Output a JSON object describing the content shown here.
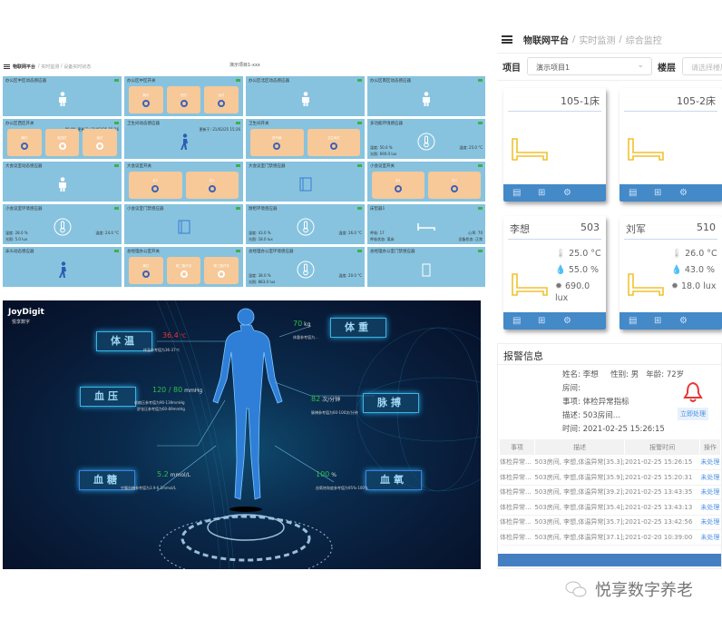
{
  "dashboard": {
    "breadcrumb": [
      "物联网平台",
      "实时监测",
      "设备实时状态"
    ],
    "project": "演示项目1-xxx",
    "cells": [
      {
        "title": "办公区中区动态感应器",
        "type": "person"
      },
      {
        "title": "办公区中区开关",
        "type": "switch",
        "switches": [
          {
            "label": "筒灯",
            "on": true
          },
          {
            "label": "顶灯",
            "on": true
          },
          {
            "label": "台灯",
            "on": true
          }
        ]
      },
      {
        "title": "办公区北区动态感应器",
        "type": "person"
      },
      {
        "title": "办公区南区动态感应器",
        "type": "person"
      },
      {
        "title": "办公区西区开关",
        "type": "switch",
        "meta": "80.0%  更新于: 21/02/25 15:26",
        "switches": [
          {
            "label": "筒灯",
            "on": true
          },
          {
            "label": "吸顶灯",
            "on": false
          },
          {
            "label": "射灯",
            "on": false
          }
        ]
      },
      {
        "title": "卫生间动态感应器",
        "type": "walker",
        "meta": "更新于: 21/02/25 15:26"
      },
      {
        "title": "卫生间开关",
        "type": "switch",
        "switches": [
          {
            "label": "排气扇",
            "on": true
          },
          {
            "label": "卫生间灯",
            "on": true
          }
        ]
      },
      {
        "title": "多功能环境感应器",
        "type": "env",
        "humidity": "湿度: 50.0 %",
        "temp": "温度: 25.0 °C",
        "light": "光照: 690.0 lux"
      },
      {
        "title": "大会议室动态感应器",
        "type": "person"
      },
      {
        "title": "大会议室开关",
        "type": "switch",
        "switches": [
          {
            "label": "灯1",
            "on": true
          },
          {
            "label": "灯2",
            "on": true
          }
        ]
      },
      {
        "title": "大会议室门禁感应器",
        "type": "door"
      },
      {
        "title": "小会议室开关",
        "type": "switch",
        "switches": [
          {
            "label": "灯1",
            "on": true
          },
          {
            "label": "灯2",
            "on": true
          }
        ]
      },
      {
        "title": "小会议室环境感应器",
        "type": "env",
        "humidity": "湿度: 28.0 %",
        "temp": "温度: 24.0 °C",
        "light": "光照: 5.0 lux"
      },
      {
        "title": "小会议室门禁感应器",
        "type": "door"
      },
      {
        "title": "厨柜环境感应器",
        "type": "env",
        "humidity": "湿度: 43.0 %",
        "temp": "温度: 26.0 °C",
        "light": "光照: 18.0 lux"
      },
      {
        "title": "床垫器1",
        "type": "bed",
        "breath": "呼吸: 17",
        "heart": "心率: 70",
        "state": "呼吸状态: 离床",
        "device": "设备状态: 正常"
      },
      {
        "title": "床头动态感应器",
        "type": "walker"
      },
      {
        "title": "总经理办公室开关",
        "type": "switch",
        "switches": [
          {
            "label": "筒灯",
            "on": true
          },
          {
            "label": "第二路开关",
            "on": false
          },
          {
            "label": "第三路开关",
            "on": false
          }
        ]
      },
      {
        "title": "总经理办公室环境感应器",
        "type": "env",
        "humidity": "湿度: 38.0 %",
        "temp": "温度: 20.0 °C",
        "light": "光照: 883.0 lux"
      },
      {
        "title": "总经理办公室门禁感应器",
        "type": "door2"
      }
    ]
  },
  "health": {
    "logo": "JoyDigit",
    "logo_sub": "悦享数字",
    "temp": {
      "label": "体温",
      "value": "36.4",
      "unit": "℃",
      "ref": "体温参考值为36-37℃"
    },
    "bp": {
      "label": "血压",
      "value": "120 / 80",
      "unit": "mmHg",
      "ref1": "收缩压参考值为90-139mmHg",
      "ref2": "舒张压参考值为60-89mmHg"
    },
    "weight": {
      "label": "体重",
      "value": "70",
      "unit": "kg",
      "ref": "体重参考值为..."
    },
    "pulse": {
      "label": "脉搏",
      "value": "82",
      "unit": "次/分钟",
      "ref": "脉搏参考值为60-100次/分钟"
    },
    "sugar": {
      "label": "血糖",
      "value": "5.2",
      "unit": "mmol/L",
      "ref": "空腹血糖参考值为3.9-6.1mmol/L"
    },
    "spo2": {
      "label": "血氧",
      "value": "100",
      "unit": "%",
      "ref": "血氧饱和度参考值为95%-100%"
    }
  },
  "right": {
    "breadcrumb": [
      "物联网平台",
      "实时监测",
      "综合监控"
    ],
    "project_label": "项目",
    "project_value": "演示项目1",
    "floor_label": "楼层",
    "floor_placeholder": "请选择楼层",
    "beds": [
      {
        "title": "105-1床"
      },
      {
        "title": "105-2床"
      },
      {
        "name": "李想",
        "room": "503",
        "temp": "25.0 °C",
        "humidity": "55.0 %",
        "light": "690.0",
        "light_unit": "lux"
      },
      {
        "name": "刘军",
        "room": "510",
        "temp": "26.0 °C",
        "humidity": "43.0 %",
        "light": "18.0 lux"
      }
    ],
    "alarm": {
      "title": "报警信息",
      "name": "姓名: 李想",
      "gender": "性别: 男",
      "age": "年龄: 72岁",
      "room": "房间:",
      "item": "事项: 体检异常指标",
      "desc": "描述: 503房间...",
      "time": "时间: 2021-02-25 15:26:15",
      "handle": "立即处理",
      "columns": [
        "事项",
        "描述",
        "报警时间",
        "操作"
      ],
      "rows": [
        [
          "体检异常...",
          "503房间, 李想,体温异常[35.3];",
          "2021-02-25 15:26:15",
          "未处理"
        ],
        [
          "体检异常...",
          "503房间, 李想,体温异常[35.9];",
          "2021-02-25 15:20:31",
          "未处理"
        ],
        [
          "体检异常...",
          "503房间, 李想,体温异常[39.2];",
          "2021-02-25 13:43:35",
          "未处理"
        ],
        [
          "体检异常...",
          "503房间, 李想,体温异常[35.4];",
          "2021-02-25 13:43:13",
          "未处理"
        ],
        [
          "体检异常...",
          "503房间, 李想,体温异常[35.7];",
          "2021-02-25 13:42:56",
          "未处理"
        ],
        [
          "体检异常...",
          "503房间, 李想,体温异常[37.1];",
          "2021-02-20 10:39:00",
          "未处理"
        ]
      ]
    }
  },
  "watermark": "悦享数字养老",
  "colors": {
    "tile": "#87c3df",
    "switch": "#f7c898",
    "accent": "#4489c8",
    "bell": "#e53935",
    "bed": "#f2c12e"
  }
}
